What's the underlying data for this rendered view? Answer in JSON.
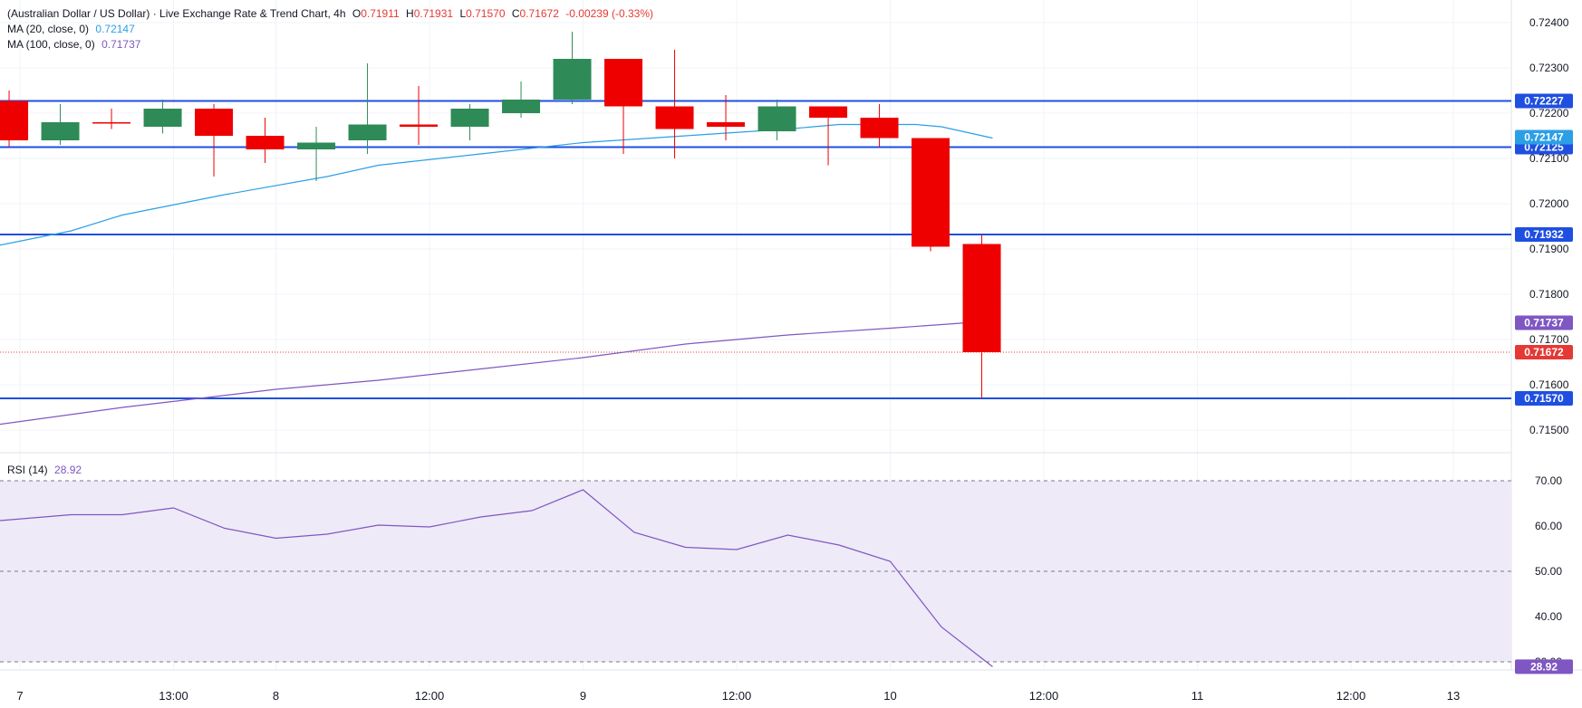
{
  "header": {
    "title": "(Australian Dollar / US Dollar) · Live Exchange Rate & Trend Chart, 4h",
    "o_label": "O",
    "o": "0.71911",
    "h_label": "H",
    "h": "0.71931",
    "l_label": "L",
    "l": "0.71570",
    "c_label": "C",
    "c": "0.71672",
    "change": "-0.00239 (-0.33%)"
  },
  "indicators": {
    "ma20_label": "MA (20, close, 0)",
    "ma20_value": "0.72147",
    "ma100_label": "MA (100, close, 0)",
    "ma100_value": "0.71737",
    "rsi_label": "RSI (14)",
    "rsi_value": "28.92"
  },
  "colors": {
    "up": "#2e8b57",
    "down": "#ee0000",
    "level": "#1f4fe0",
    "ma20": "#2b9fe6",
    "ma100": "#7e57c2",
    "rsi": "#7e57c2",
    "rsi_band": "#efeaf7",
    "close_line": "#e53935"
  },
  "chart_data": [
    {
      "type": "candlestick",
      "title": "",
      "x_ticks": [
        {
          "i": 0,
          "label": "7"
        },
        {
          "i": 3,
          "label": "13:00"
        },
        {
          "i": 5,
          "label": "8"
        },
        {
          "i": 8,
          "label": "12:00"
        },
        {
          "i": 11,
          "label": "9"
        },
        {
          "i": 14,
          "label": "12:00"
        },
        {
          "i": 17,
          "label": "10"
        },
        {
          "i": 20,
          "label": "12:00"
        },
        {
          "i": 23,
          "label": "11"
        },
        {
          "i": 26,
          "label": "12:00"
        },
        {
          "i": 28,
          "label": "13"
        }
      ],
      "ylim": [
        0.7145,
        0.7245
      ],
      "y_ticks": [
        "0.71500",
        "0.71600",
        "0.71700",
        "0.71800",
        "0.71900",
        "0.72000",
        "0.72100",
        "0.72200",
        "0.72300",
        "0.72400"
      ],
      "candles": [
        {
          "o": 0.72227,
          "h": 0.7225,
          "l": 0.72125,
          "c": 0.7214
        },
        {
          "o": 0.7214,
          "h": 0.7222,
          "l": 0.7213,
          "c": 0.7218
        },
        {
          "o": 0.7218,
          "h": 0.7221,
          "l": 0.72165,
          "c": 0.72178
        },
        {
          "o": 0.7217,
          "h": 0.7223,
          "l": 0.72155,
          "c": 0.7221
        },
        {
          "o": 0.7221,
          "h": 0.7222,
          "l": 0.7206,
          "c": 0.7215
        },
        {
          "o": 0.7215,
          "h": 0.7219,
          "l": 0.7209,
          "c": 0.7212
        },
        {
          "o": 0.7212,
          "h": 0.7217,
          "l": 0.7205,
          "c": 0.72135
        },
        {
          "o": 0.7214,
          "h": 0.7231,
          "l": 0.7211,
          "c": 0.72175
        },
        {
          "o": 0.72175,
          "h": 0.7226,
          "l": 0.7213,
          "c": 0.7217
        },
        {
          "o": 0.7217,
          "h": 0.7222,
          "l": 0.7214,
          "c": 0.7221
        },
        {
          "o": 0.722,
          "h": 0.7227,
          "l": 0.7219,
          "c": 0.7223
        },
        {
          "o": 0.7223,
          "h": 0.7238,
          "l": 0.7222,
          "c": 0.7232
        },
        {
          "o": 0.7232,
          "h": 0.7232,
          "l": 0.7211,
          "c": 0.72215
        },
        {
          "o": 0.72215,
          "h": 0.7234,
          "l": 0.721,
          "c": 0.72165
        },
        {
          "o": 0.7218,
          "h": 0.7224,
          "l": 0.7214,
          "c": 0.7217
        },
        {
          "o": 0.7216,
          "h": 0.7223,
          "l": 0.7214,
          "c": 0.72215
        },
        {
          "o": 0.72215,
          "h": 0.72215,
          "l": 0.72085,
          "c": 0.7219
        },
        {
          "o": 0.7219,
          "h": 0.7222,
          "l": 0.72125,
          "c": 0.72145
        },
        {
          "o": 0.72145,
          "h": 0.72145,
          "l": 0.71895,
          "c": 0.71905
        },
        {
          "o": 0.71911,
          "h": 0.71931,
          "l": 0.7157,
          "c": 0.71672
        }
      ],
      "ma20": [
        [
          -1.2,
          0.7189
        ],
        [
          1.0,
          0.7194
        ],
        [
          2.0,
          0.71975
        ],
        [
          4.0,
          0.7202
        ],
        [
          6.0,
          0.7206
        ],
        [
          7.0,
          0.72085
        ],
        [
          9.0,
          0.7211
        ],
        [
          11.0,
          0.72135
        ],
        [
          13.0,
          0.7215
        ],
        [
          15.0,
          0.72165
        ],
        [
          16.0,
          0.72175
        ],
        [
          17.5,
          0.72175
        ],
        [
          18.0,
          0.7217
        ],
        [
          19.0,
          0.72145
        ]
      ],
      "ma100": [
        [
          -1.2,
          0.715
        ],
        [
          2.0,
          0.7155
        ],
        [
          5.0,
          0.7159
        ],
        [
          7.0,
          0.7161
        ],
        [
          9.0,
          0.71635
        ],
        [
          11.0,
          0.7166
        ],
        [
          13.0,
          0.7169
        ],
        [
          15.0,
          0.7171
        ],
        [
          17.0,
          0.71725
        ],
        [
          18.5,
          0.71737
        ]
      ],
      "levels": [
        {
          "value": 0.72227,
          "label": "0.72227"
        },
        {
          "value": 0.72125,
          "label": "0.72125"
        },
        {
          "value": 0.71932,
          "label": "0.71932"
        },
        {
          "value": 0.7157,
          "label": "0.71570"
        }
      ],
      "price_tags": [
        {
          "value": 0.72147,
          "label": "0.72147",
          "color_key": "ma20"
        },
        {
          "value": 0.71737,
          "label": "0.71737",
          "color_key": "ma100"
        },
        {
          "value": 0.71672,
          "label": "0.71672",
          "color_key": "close_line"
        }
      ],
      "close_value": 0.71672
    },
    {
      "type": "line",
      "title": "",
      "ylim": [
        27,
        72
      ],
      "y_ticks": [
        "30.00",
        "40.00",
        "50.00",
        "60.00",
        "70.00"
      ],
      "band": [
        30,
        70
      ],
      "dashed_levels": [
        30,
        50,
        70
      ],
      "rsi": [
        [
          -1.0,
          63.2
        ],
        [
          -0.6,
          61.0
        ],
        [
          1.0,
          62.5
        ],
        [
          2.0,
          62.5
        ],
        [
          3.0,
          64.0
        ],
        [
          4.0,
          59.5
        ],
        [
          5.0,
          57.3
        ],
        [
          6.0,
          58.2
        ],
        [
          7.0,
          60.2
        ],
        [
          8.0,
          59.8
        ],
        [
          9.0,
          62.0
        ],
        [
          10.0,
          63.4
        ],
        [
          11.0,
          68.0
        ],
        [
          12.0,
          58.6
        ],
        [
          13.0,
          55.3
        ],
        [
          14.0,
          54.8
        ],
        [
          15.0,
          58.0
        ],
        [
          16.0,
          55.8
        ],
        [
          17.0,
          52.2
        ],
        [
          18.0,
          37.7
        ],
        [
          19.0,
          28.92
        ]
      ],
      "tag_label": "28.92"
    }
  ]
}
